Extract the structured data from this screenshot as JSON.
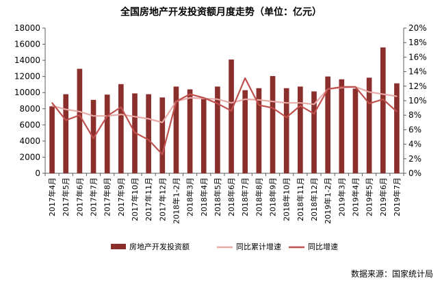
{
  "colors": {
    "bar": "#8B2F2C",
    "cumulative_line": "#E7A9A6",
    "yoy_line": "#C0504D",
    "axis": "#595959",
    "text": "#000000"
  },
  "chart_data": {
    "type": "bar",
    "title": "全国房地产开发投资额月度走势（单位：亿元）",
    "categories": [
      "2017年4月",
      "2017年5月",
      "2017年6月",
      "2017年7月",
      "2017年8月",
      "2017年9月",
      "2017年10月",
      "2017年11月",
      "2017年12月",
      "2018年1-2月",
      "2018年3月",
      "2018年4月",
      "2018年5月",
      "2018年6月",
      "2018年7月",
      "2018年8月",
      "2018年9月",
      "2018年10月",
      "2018年11月",
      "2018年12月",
      "2019年1-2月",
      "2019年3月",
      "2019年4月",
      "2019年5月",
      "2019年6月",
      "2019年7月"
    ],
    "ylim_left": [
      0,
      18000
    ],
    "yticks_left": [
      "0",
      "2000",
      "4000",
      "6000",
      "8000",
      "10000",
      "12000",
      "14000",
      "16000",
      "18000"
    ],
    "ylim_right": [
      0,
      20
    ],
    "yticks_right": [
      "0%",
      "2%",
      "4%",
      "6%",
      "8%",
      "10%",
      "12%",
      "14%",
      "16%",
      "18%",
      "20%"
    ],
    "grid": false,
    "legend_position": "bottom",
    "series": [
      {
        "name": "房地产开发投资额",
        "type": "bar",
        "axis": "left",
        "values": [
          8300,
          9800,
          12950,
          9100,
          9750,
          11050,
          9900,
          9800,
          9400,
          10750,
          10400,
          9300,
          10750,
          14100,
          10300,
          10550,
          12050,
          10550,
          10750,
          10150,
          12000,
          11650,
          10500,
          11850,
          15600,
          11150
        ]
      },
      {
        "name": "同比累计增速",
        "type": "line",
        "axis": "right",
        "values": [
          9.3,
          8.8,
          8.5,
          7.9,
          7.9,
          8.1,
          7.8,
          7.5,
          7.0,
          9.9,
          10.4,
          10.3,
          10.2,
          9.7,
          10.2,
          10.1,
          9.9,
          9.7,
          9.7,
          9.5,
          11.6,
          11.8,
          11.9,
          11.2,
          10.9,
          10.6
        ]
      },
      {
        "name": "同比增速",
        "type": "line",
        "axis": "right",
        "values": [
          9.7,
          7.3,
          8.0,
          4.8,
          7.9,
          9.1,
          5.6,
          4.6,
          2.6,
          9.9,
          10.9,
          10.4,
          9.6,
          8.6,
          13.1,
          9.4,
          9.0,
          7.7,
          9.3,
          8.2,
          11.6,
          11.9,
          11.9,
          9.6,
          10.2,
          8.5
        ]
      }
    ],
    "source": "数据来源：国家统计局"
  }
}
